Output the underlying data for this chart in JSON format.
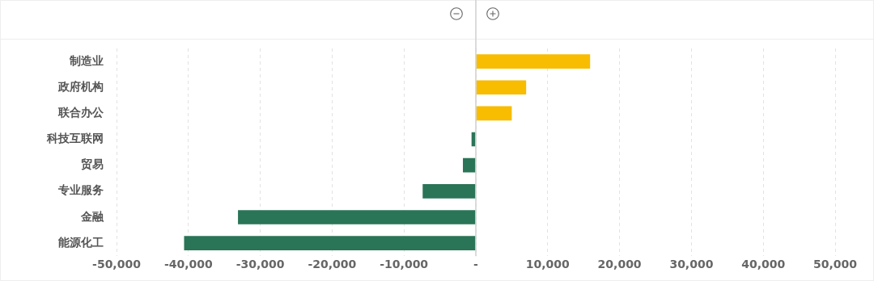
{
  "chart_data": {
    "type": "bar",
    "orientation": "horizontal",
    "categories": [
      "制造业",
      "政府机构",
      "联合办公",
      "科技互联网",
      "贸易",
      "专业服务",
      "金融",
      "能源化工"
    ],
    "values": [
      15900,
      7000,
      5000,
      -600,
      -1800,
      -7400,
      -33100,
      -40600
    ],
    "colors": [
      "#f8bc00",
      "#f8bc00",
      "#f8bc00",
      "#2a7458",
      "#2a7458",
      "#2a7458",
      "#2a7458",
      "#2a7458"
    ],
    "xlim": [
      -50000,
      50000
    ],
    "xticks": [
      {
        "value": -50000,
        "label": "-50,000"
      },
      {
        "value": -40000,
        "label": "-40,000"
      },
      {
        "value": -30000,
        "label": "-30,000"
      },
      {
        "value": -20000,
        "label": "-20,000"
      },
      {
        "value": -10000,
        "label": "-10,000"
      },
      {
        "value": 0,
        "label": "-"
      },
      {
        "value": 10000,
        "label": "10,000"
      },
      {
        "value": 20000,
        "label": "20,000"
      },
      {
        "value": 30000,
        "label": "30,000"
      },
      {
        "value": 40000,
        "label": "40,000"
      },
      {
        "value": 50000,
        "label": "50,000"
      }
    ],
    "grid": "x"
  }
}
